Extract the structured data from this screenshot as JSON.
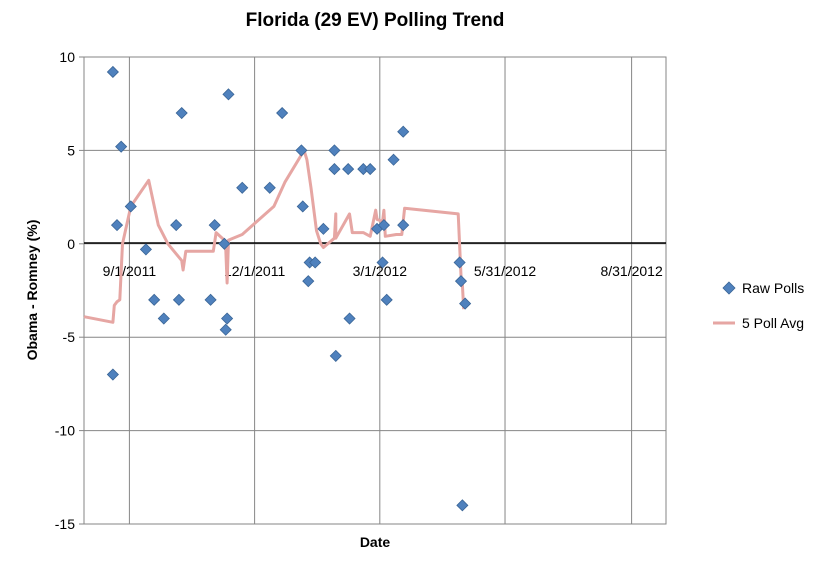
{
  "chart_data": {
    "type": "scatter",
    "title": "Florida (29 EV) Polling Trend",
    "xlabel": "Date",
    "ylabel": "Obama - Romney (%)",
    "xlim": [
      "2011-07-30",
      "2012-09-25"
    ],
    "ylim": [
      -15,
      10
    ],
    "y_ticks": [
      -15,
      -10,
      -5,
      0,
      5,
      10
    ],
    "x_ticks": [
      "2011-09-01",
      "2011-12-01",
      "2012-03-01",
      "2012-05-31",
      "2012-08-31"
    ],
    "x_tick_labels": [
      "9/1/2011",
      "12/1/2011",
      "3/1/2012",
      "5/31/2012",
      "8/31/2012"
    ],
    "grid": "vertical and horizontal major gridlines",
    "legend_position": "right",
    "series": [
      {
        "name": "Raw Polls",
        "marker": "diamond",
        "color": "#4f81bd",
        "points": [
          {
            "x": "2011-08-20",
            "y": -7
          },
          {
            "x": "2011-08-20",
            "y": 9.2
          },
          {
            "x": "2011-08-23",
            "y": 1
          },
          {
            "x": "2011-08-26",
            "y": 5.2
          },
          {
            "x": "2011-09-02",
            "y": 2
          },
          {
            "x": "2011-09-13",
            "y": -0.3
          },
          {
            "x": "2011-09-19",
            "y": -3
          },
          {
            "x": "2011-09-26",
            "y": -4
          },
          {
            "x": "2011-10-05",
            "y": 1
          },
          {
            "x": "2011-10-07",
            "y": -3
          },
          {
            "x": "2011-10-09",
            "y": 7
          },
          {
            "x": "2011-10-30",
            "y": -3
          },
          {
            "x": "2011-11-02",
            "y": 1
          },
          {
            "x": "2011-11-09",
            "y": 0
          },
          {
            "x": "2011-11-10",
            "y": -4.6
          },
          {
            "x": "2011-11-11",
            "y": -4
          },
          {
            "x": "2011-11-12",
            "y": 8
          },
          {
            "x": "2011-11-22",
            "y": 3
          },
          {
            "x": "2011-12-12",
            "y": 3
          },
          {
            "x": "2011-12-21",
            "y": 7
          },
          {
            "x": "2012-01-04",
            "y": 5
          },
          {
            "x": "2012-01-05",
            "y": 2
          },
          {
            "x": "2012-01-09",
            "y": -2
          },
          {
            "x": "2012-01-10",
            "y": -1
          },
          {
            "x": "2012-01-14",
            "y": -1
          },
          {
            "x": "2012-01-20",
            "y": 0.8
          },
          {
            "x": "2012-01-28",
            "y": 5
          },
          {
            "x": "2012-01-28",
            "y": 4
          },
          {
            "x": "2012-01-29",
            "y": -6
          },
          {
            "x": "2012-02-07",
            "y": 4
          },
          {
            "x": "2012-02-08",
            "y": -4
          },
          {
            "x": "2012-02-18",
            "y": 4
          },
          {
            "x": "2012-02-23",
            "y": 4
          },
          {
            "x": "2012-02-28",
            "y": 0.8
          },
          {
            "x": "2012-03-03",
            "y": -1
          },
          {
            "x": "2012-03-04",
            "y": 1
          },
          {
            "x": "2012-03-06",
            "y": -3
          },
          {
            "x": "2012-03-11",
            "y": 4.5
          },
          {
            "x": "2012-03-18",
            "y": 6
          },
          {
            "x": "2012-03-18",
            "y": 1
          },
          {
            "x": "2012-04-28",
            "y": -1
          },
          {
            "x": "2012-04-29",
            "y": -2
          },
          {
            "x": "2012-04-30",
            "y": -14
          },
          {
            "x": "2012-05-02",
            "y": -3.2
          }
        ]
      },
      {
        "name": "5 Poll Avg",
        "color": "#e6a6a3",
        "points": [
          {
            "x": "2011-07-30",
            "y": -3.9
          },
          {
            "x": "2011-08-20",
            "y": -4.2
          },
          {
            "x": "2011-08-21",
            "y": -3.3
          },
          {
            "x": "2011-08-23",
            "y": -3.1
          },
          {
            "x": "2011-08-25",
            "y": -3
          },
          {
            "x": "2011-08-27",
            "y": 0
          },
          {
            "x": "2011-09-02",
            "y": 2
          },
          {
            "x": "2011-09-15",
            "y": 3.4
          },
          {
            "x": "2011-09-22",
            "y": 1
          },
          {
            "x": "2011-09-29",
            "y": 0
          },
          {
            "x": "2011-10-09",
            "y": -0.9
          },
          {
            "x": "2011-10-10",
            "y": -1.4
          },
          {
            "x": "2011-10-12",
            "y": -0.4
          },
          {
            "x": "2011-11-01",
            "y": -0.4
          },
          {
            "x": "2011-11-03",
            "y": 0.6
          },
          {
            "x": "2011-11-09",
            "y": 0.2
          },
          {
            "x": "2011-11-10",
            "y": -0.2
          },
          {
            "x": "2011-11-11",
            "y": -2.1
          },
          {
            "x": "2011-11-12",
            "y": 0.2
          },
          {
            "x": "2011-11-22",
            "y": 0.5
          },
          {
            "x": "2011-12-15",
            "y": 2
          },
          {
            "x": "2011-12-23",
            "y": 3.3
          },
          {
            "x": "2012-01-06",
            "y": 5
          },
          {
            "x": "2012-01-08",
            "y": 4.5
          },
          {
            "x": "2012-01-11",
            "y": 3
          },
          {
            "x": "2012-01-15",
            "y": 0.7
          },
          {
            "x": "2012-01-18",
            "y": 0
          },
          {
            "x": "2012-01-20",
            "y": -0.2
          },
          {
            "x": "2012-01-28",
            "y": 0.3
          },
          {
            "x": "2012-01-29",
            "y": 1.6
          },
          {
            "x": "2012-01-29",
            "y": 0.3
          },
          {
            "x": "2012-02-08",
            "y": 1.6
          },
          {
            "x": "2012-02-10",
            "y": 0.6
          },
          {
            "x": "2012-02-18",
            "y": 0.6
          },
          {
            "x": "2012-02-23",
            "y": 0.4
          },
          {
            "x": "2012-02-27",
            "y": 1.8
          },
          {
            "x": "2012-02-28",
            "y": 1.3
          },
          {
            "x": "2012-03-03",
            "y": 1.2
          },
          {
            "x": "2012-03-04",
            "y": 1.8
          },
          {
            "x": "2012-03-05",
            "y": 0.4
          },
          {
            "x": "2012-03-13",
            "y": 0.5
          },
          {
            "x": "2012-03-17",
            "y": 0.5
          },
          {
            "x": "2012-03-19",
            "y": 1.9
          },
          {
            "x": "2012-04-27",
            "y": 1.6
          },
          {
            "x": "2012-04-29",
            "y": -1.7
          },
          {
            "x": "2012-04-30",
            "y": -2.2
          },
          {
            "x": "2012-05-01",
            "y": -3.5
          }
        ]
      }
    ]
  }
}
